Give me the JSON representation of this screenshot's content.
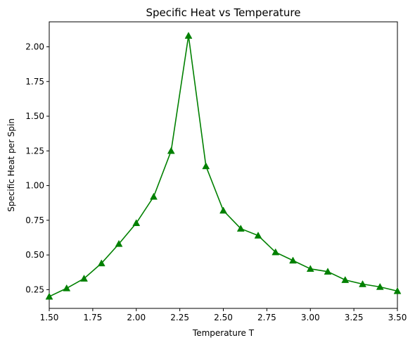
{
  "chart_data": {
    "type": "line",
    "title": "Specific Heat vs Temperature",
    "xlabel": "Temperature T",
    "ylabel": "Specific Heat per Spin",
    "xlim": [
      1.5,
      3.5
    ],
    "ylim": [
      0.115,
      2.18
    ],
    "grid": false,
    "legend": "none",
    "marker": "triangle-up",
    "color": "#008000",
    "x_ticks": [
      "1.50",
      "1.75",
      "2.00",
      "2.25",
      "2.50",
      "2.75",
      "3.00",
      "3.25",
      "3.50"
    ],
    "y_ticks": [
      "0.25",
      "0.50",
      "0.75",
      "1.00",
      "1.25",
      "1.50",
      "1.75",
      "2.00"
    ],
    "x": [
      1.5,
      1.6,
      1.7,
      1.8,
      1.9,
      2.0,
      2.1,
      2.2,
      2.3,
      2.4,
      2.5,
      2.6,
      2.7,
      2.8,
      2.9,
      3.0,
      3.1,
      3.2,
      3.3,
      3.4,
      3.5
    ],
    "y": [
      0.2,
      0.26,
      0.33,
      0.44,
      0.58,
      0.73,
      0.92,
      1.25,
      2.08,
      1.14,
      0.82,
      0.69,
      0.64,
      0.52,
      0.46,
      0.4,
      0.38,
      0.32,
      0.29,
      0.27,
      0.24
    ]
  }
}
